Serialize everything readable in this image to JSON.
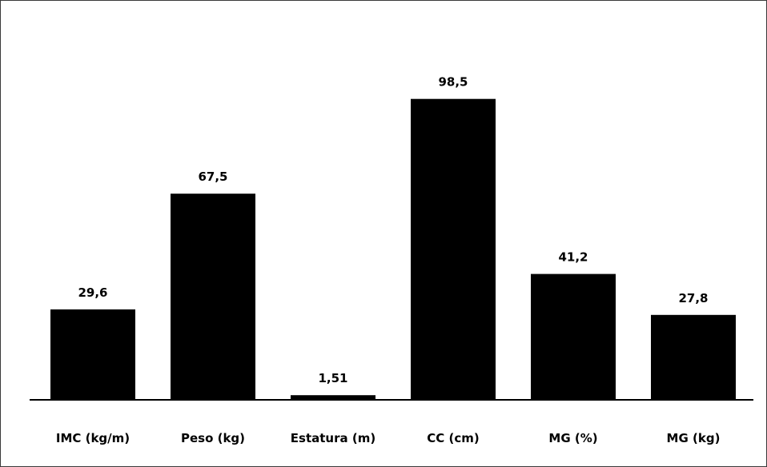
{
  "chart_data": {
    "type": "bar",
    "title": "",
    "xlabel": "",
    "ylabel": "",
    "categories": [
      "IMC (kg/m)",
      "Peso (kg)",
      "Estatura (m)",
      "CC (cm)",
      "MG (%)",
      "MG (kg)"
    ],
    "values": [
      29.6,
      67.5,
      1.51,
      98.5,
      41.2,
      27.8
    ],
    "value_labels": [
      "29,6",
      "67,5",
      "1,51",
      "98,5",
      "41,2",
      "27,8"
    ],
    "ylim": [
      0,
      110
    ],
    "grid": false,
    "legend": "none",
    "colors": {
      "bar": "#000000",
      "axis": "#000000",
      "frame": "#3a3a3a",
      "background": "#ffffff"
    }
  }
}
